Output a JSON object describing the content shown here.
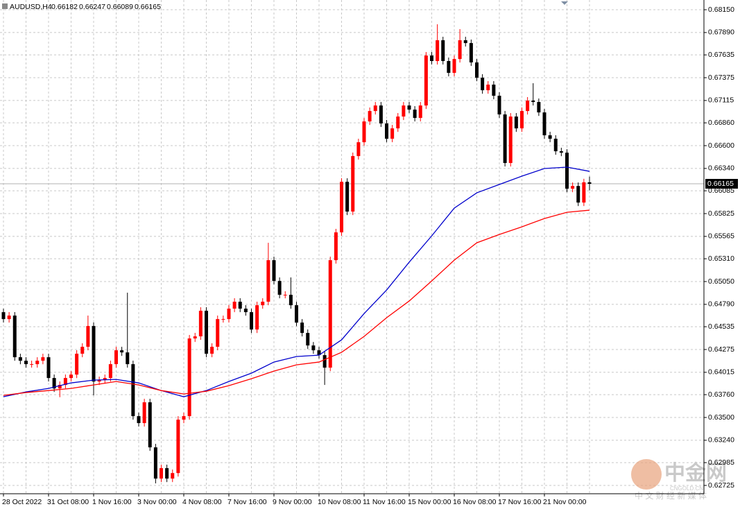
{
  "chart_data": {
    "type": "candlestick",
    "title": "AUDUSD,H4",
    "categories": [
      "28 Oct 2022",
      null,
      null,
      null,
      null,
      null,
      null,
      null,
      "31 Oct 08:00",
      null,
      null,
      null,
      null,
      null,
      null,
      null,
      "1 Nov 16:00",
      null,
      null,
      null,
      null,
      null,
      null,
      null,
      "3 Nov 00:00",
      null,
      null,
      null,
      null,
      null,
      null,
      null,
      "4 Nov 08:00",
      null,
      null,
      null,
      null,
      null,
      null,
      null,
      "7 Nov 16:00",
      null,
      null,
      null,
      null,
      null,
      null,
      null,
      "9 Nov 00:00",
      null,
      null,
      null,
      null,
      null,
      null,
      null,
      "10 Nov 08:00",
      null,
      null,
      null,
      null,
      null,
      null,
      null,
      "11 Nov 16:00",
      null,
      null,
      null,
      null,
      null,
      null,
      null,
      "15 Nov 00:00",
      null,
      null,
      null,
      null,
      null,
      null,
      null,
      "16 Nov 08:00",
      null,
      null,
      null,
      null,
      null,
      null,
      null,
      "17 Nov 16:00",
      null,
      null,
      null,
      null,
      null,
      null,
      null,
      "21 Nov 00:00",
      null,
      null,
      null,
      null,
      null,
      null,
      null,
      null
    ],
    "open": [
      0.64701,
      0.64622,
      0.64662,
      0.64187,
      0.64147,
      0.64108,
      0.64108,
      0.64147,
      0.64187,
      0.6395,
      0.63831,
      0.63871,
      0.6395,
      0.63989,
      0.64227,
      0.64306,
      0.64543,
      0.6391,
      0.63926,
      0.6395,
      0.64108,
      0.64266,
      0.64242,
      0.64108,
      0.63515,
      0.63436,
      0.63673,
      0.63159,
      0.62803,
      0.62922,
      0.62803,
      0.62866,
      0.63475,
      0.63515,
      0.64401,
      0.64425,
      0.64717,
      0.64227,
      0.64306,
      0.64622,
      0.64622,
      0.64741,
      0.6482,
      0.64741,
      0.64701,
      0.64503,
      0.6478,
      0.6482,
      0.65294,
      0.65057,
      0.64899,
      0.64899,
      0.6478,
      0.64582,
      0.64464,
      0.64321,
      0.64266,
      0.64211,
      0.64068,
      0.65294,
      0.65611,
      0.66188,
      0.65848,
      0.66481,
      0.66639,
      0.66876,
      0.66995,
      0.67058,
      0.66853,
      0.66679,
      0.66797,
      0.66932,
      0.67058,
      0.67011,
      0.66916,
      0.67058,
      0.67628,
      0.67565,
      0.67802,
      0.67565,
      0.6743,
      0.67588,
      0.67802,
      0.6777,
      0.67549,
      0.67375,
      0.67232,
      0.67296,
      0.67169,
      0.66956,
      0.66402,
      0.66932,
      0.66797,
      0.66995,
      0.67114,
      0.67098,
      0.66979,
      0.66718,
      0.66679,
      0.66536,
      0.6652,
      0.66109,
      0.6614,
      0.65951,
      0.66182
    ],
    "high": [
      0.64741,
      0.64702,
      0.64702,
      0.64227,
      0.64187,
      0.64148,
      0.64187,
      0.64227,
      0.64227,
      0.6399,
      0.63911,
      0.6399,
      0.64029,
      0.64267,
      0.64346,
      0.64662,
      0.64583,
      0.63966,
      0.6399,
      0.64148,
      0.64306,
      0.64306,
      0.64923,
      0.64148,
      0.63555,
      0.63713,
      0.63713,
      0.63199,
      0.62962,
      0.62962,
      0.62906,
      0.63515,
      0.63555,
      0.64441,
      0.64465,
      0.64757,
      0.64757,
      0.64346,
      0.64662,
      0.64662,
      0.64781,
      0.6486,
      0.6486,
      0.64781,
      0.64741,
      0.6482,
      0.6486,
      0.65492,
      0.65334,
      0.65097,
      0.64939,
      0.65097,
      0.6482,
      0.64622,
      0.64504,
      0.64361,
      0.64306,
      0.64251,
      0.65334,
      0.65651,
      0.66228,
      0.66228,
      0.66521,
      0.66679,
      0.66916,
      0.67035,
      0.67098,
      0.67098,
      0.66893,
      0.66837,
      0.66972,
      0.67098,
      0.67098,
      0.67051,
      0.67098,
      0.67668,
      0.67668,
      0.67984,
      0.67842,
      0.67605,
      0.67628,
      0.67929,
      0.67842,
      0.6781,
      0.67589,
      0.67415,
      0.67336,
      0.67336,
      0.67209,
      0.66996,
      0.66972,
      0.66972,
      0.67035,
      0.67154,
      0.67312,
      0.67138,
      0.67019,
      0.66758,
      0.66719,
      0.66576,
      0.6656,
      0.6618,
      0.6618,
      0.66222,
      0.66247
    ],
    "low": [
      0.64582,
      0.64582,
      0.64147,
      0.64107,
      0.64068,
      0.64068,
      0.64068,
      0.64107,
      0.6391,
      0.63791,
      0.63731,
      0.63831,
      0.6391,
      0.63949,
      0.64187,
      0.64266,
      0.63752,
      0.6387,
      0.63886,
      0.6391,
      0.64068,
      0.64202,
      0.64068,
      0.63475,
      0.63396,
      0.63396,
      0.63119,
      0.62748,
      0.62763,
      0.62763,
      0.62763,
      0.62826,
      0.63435,
      0.63475,
      0.64361,
      0.64385,
      0.64187,
      0.64187,
      0.64266,
      0.64582,
      0.64582,
      0.64701,
      0.64701,
      0.64661,
      0.64463,
      0.64463,
      0.6474,
      0.6478,
      0.65017,
      0.64859,
      0.64859,
      0.6474,
      0.64542,
      0.64424,
      0.64281,
      0.64226,
      0.64171,
      0.63871,
      0.64028,
      0.65254,
      0.65571,
      0.65808,
      0.65808,
      0.66441,
      0.66599,
      0.66836,
      0.66955,
      0.66813,
      0.66639,
      0.66639,
      0.66757,
      0.66892,
      0.66971,
      0.66876,
      0.66876,
      0.67018,
      0.67525,
      0.67525,
      0.67525,
      0.6739,
      0.6739,
      0.67548,
      0.6773,
      0.67509,
      0.67335,
      0.67192,
      0.67192,
      0.67129,
      0.66916,
      0.66362,
      0.66362,
      0.66757,
      0.66757,
      0.66955,
      0.67058,
      0.66939,
      0.66678,
      0.66639,
      0.66496,
      0.6648,
      0.66069,
      0.66069,
      0.65911,
      0.65911,
      0.66089
    ],
    "close": [
      0.64622,
      0.64662,
      0.64187,
      0.64147,
      0.64108,
      0.64108,
      0.64147,
      0.64187,
      0.6395,
      0.63831,
      0.63871,
      0.6395,
      0.63989,
      0.64227,
      0.64306,
      0.64543,
      0.6391,
      0.63926,
      0.6395,
      0.64108,
      0.64266,
      0.64242,
      0.64108,
      0.63515,
      0.63436,
      0.63673,
      0.63159,
      0.62803,
      0.62922,
      0.62803,
      0.62866,
      0.63475,
      0.63515,
      0.64401,
      0.64425,
      0.64717,
      0.64227,
      0.64306,
      0.64622,
      0.64622,
      0.64741,
      0.6482,
      0.64741,
      0.64701,
      0.64503,
      0.6478,
      0.6482,
      0.65294,
      0.65057,
      0.64899,
      0.64899,
      0.6478,
      0.64582,
      0.64464,
      0.64321,
      0.64266,
      0.64211,
      0.64068,
      0.65294,
      0.65611,
      0.66188,
      0.65848,
      0.66481,
      0.66639,
      0.66876,
      0.66995,
      0.67058,
      0.66853,
      0.66679,
      0.66797,
      0.66932,
      0.67058,
      0.67011,
      0.66916,
      0.67058,
      0.67628,
      0.67565,
      0.67802,
      0.67565,
      0.6743,
      0.67588,
      0.67802,
      0.6777,
      0.67549,
      0.67375,
      0.67232,
      0.67296,
      0.67169,
      0.66956,
      0.66402,
      0.66932,
      0.66797,
      0.66995,
      0.67114,
      0.67098,
      0.66979,
      0.66718,
      0.66679,
      0.66536,
      0.6652,
      0.66109,
      0.6614,
      0.65951,
      0.66182,
      0.66165
    ],
    "up_color": "#ff0000",
    "down_color": "#000000",
    "ma_lines": [
      {
        "color": "#0000cc",
        "x": [
          0,
          4,
          8,
          12,
          16,
          20,
          24,
          28,
          32,
          36,
          40,
          44,
          48,
          52,
          56,
          60,
          64,
          68,
          72,
          76,
          80,
          84,
          88,
          92,
          96,
          100,
          104
        ],
        "values": [
          0.63736,
          0.63791,
          0.63831,
          0.63894,
          0.63926,
          0.63934,
          0.63894,
          0.63807,
          0.63736,
          0.63807,
          0.6391,
          0.64005,
          0.64132,
          0.64195,
          0.64211,
          0.64385,
          0.64685,
          0.64954,
          0.65271,
          0.65571,
          0.65888,
          0.66062,
          0.66157,
          0.66252,
          0.66339,
          0.66355,
          0.66307
        ]
      },
      {
        "color": "#ff0000",
        "x": [
          0,
          4,
          8,
          12,
          16,
          20,
          24,
          28,
          32,
          36,
          40,
          44,
          48,
          52,
          56,
          60,
          64,
          68,
          72,
          76,
          80,
          84,
          88,
          92,
          96,
          100,
          104
        ],
        "values": [
          0.63752,
          0.63784,
          0.63807,
          0.63831,
          0.63871,
          0.6391,
          0.63871,
          0.63807,
          0.63768,
          0.63799,
          0.63863,
          0.63942,
          0.64029,
          0.641,
          0.64132,
          0.64243,
          0.64424,
          0.64638,
          0.64828,
          0.65057,
          0.65294,
          0.65492,
          0.65587,
          0.65674,
          0.65769,
          0.6584,
          0.65864
        ]
      }
    ],
    "ylim": [
      0.6263,
      0.68261
    ],
    "yticks": [
      {
        "value": 0.6815,
        "label": "0.68150"
      },
      {
        "value": 0.6789,
        "label": "0.67890"
      },
      0.67635,
      0.67375,
      0.67115,
      {
        "value": 0.6686,
        "label": "0.66860"
      },
      {
        "value": 0.666,
        "label": "0.66600"
      },
      {
        "value": 0.6634,
        "label": "0.66340"
      },
      0.66085,
      0.65825,
      0.65565,
      {
        "value": 0.6531,
        "label": "0.65310"
      },
      {
        "value": 0.6505,
        "label": "0.65050"
      },
      {
        "value": 0.6479,
        "label": "0.64790"
      },
      0.64535,
      0.64275,
      0.64015,
      {
        "value": 0.6376,
        "label": "0.63760"
      },
      {
        "value": 0.635,
        "label": "0.63500"
      },
      {
        "value": 0.6324,
        "label": "0.63240"
      },
      0.62985,
      0.62725
    ],
    "grid": true
  },
  "watermark": {
    "logo": "中金网",
    "site": "CNGOLD.CN",
    "tagline": "中 文 财 经 新 媒 体"
  }
}
